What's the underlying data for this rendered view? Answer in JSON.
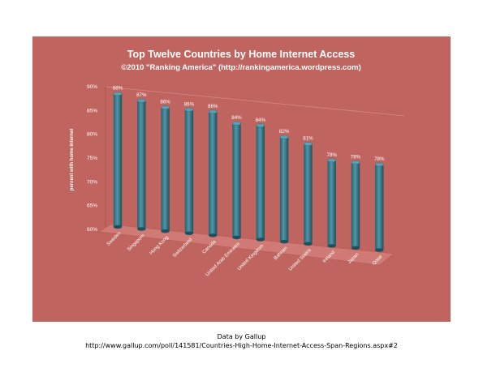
{
  "chart_data": {
    "type": "bar",
    "title": "Top Twelve Countries by Home Internet Access",
    "subtitle": "©2010 \"Ranking America\" (http://rankingamerica.wordpress.com)",
    "ylabel": "percent with home internet",
    "xlabel": "",
    "ylim": [
      60,
      90
    ],
    "yticks": [
      "90%",
      "85%",
      "80%",
      "75%",
      "70%",
      "65%",
      "60%"
    ],
    "categories": [
      "Sweden",
      "Singapore",
      "Hong Kong",
      "Switzerland",
      "Canada",
      "United Arab Emirates",
      "United Kingdom",
      "Bahrain",
      "United States",
      "Ireland",
      "Japan",
      "Qatar"
    ],
    "values": [
      88,
      87,
      86,
      86,
      86,
      84,
      84,
      82,
      81,
      78,
      78,
      78
    ],
    "data_labels": [
      "88%",
      "87%",
      "86%",
      "86%",
      "86%",
      "84%",
      "84%",
      "82%",
      "81%",
      "78%",
      "78%",
      "78%"
    ],
    "grid": false,
    "legend": "none",
    "colors": {
      "background": "#c0645f",
      "bar": "#3a7d8e",
      "bar_top": "#5aa0b0",
      "text": "#ffffff"
    }
  },
  "footer": {
    "source": "Data by Gallup",
    "url": "http://www.gallup.com/poll/141581/Countries-High-Home-Internet-Access-Span-Regions.aspx#2"
  }
}
